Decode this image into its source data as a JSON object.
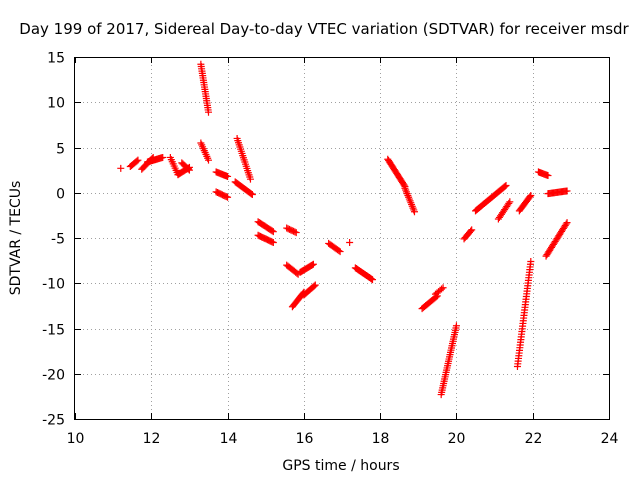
{
  "chart_data": {
    "type": "scatter",
    "title": "Day 199 of 2017, Sidereal Day-to-day VTEC variation (SDTVAR) for receiver msdr",
    "xlabel": "GPS time / hours",
    "ylabel": "SDTVAR / TECUs",
    "xlim": [
      10,
      24
    ],
    "ylim": [
      -25,
      15
    ],
    "x_ticks": [
      "10",
      "12",
      "14",
      "16",
      "18",
      "20",
      "22",
      "24"
    ],
    "y_ticks": [
      "15",
      "10",
      "5",
      "0",
      "-5",
      "-10",
      "-15",
      "-20",
      "-25"
    ],
    "grid": true,
    "legend": "none",
    "marker": "+",
    "marker_color": "#ff0000",
    "tracks": [
      {
        "x": [
          11.2,
          11.2
        ],
        "y": [
          2.7,
          2.7
        ],
        "n": 1
      },
      {
        "x": [
          11.45,
          11.65
        ],
        "y": [
          2.9,
          3.6
        ],
        "n": 8
      },
      {
        "x": [
          11.75,
          12.05
        ],
        "y": [
          2.6,
          3.9
        ],
        "n": 12
      },
      {
        "x": [
          11.9,
          12.3
        ],
        "y": [
          3.4,
          3.9
        ],
        "n": 16
      },
      {
        "x": [
          12.5,
          12.7
        ],
        "y": [
          3.9,
          2.0
        ],
        "n": 9
      },
      {
        "x": [
          12.7,
          13.0
        ],
        "y": [
          2.0,
          2.8
        ],
        "n": 12
      },
      {
        "x": [
          12.8,
          13.0
        ],
        "y": [
          3.3,
          2.5
        ],
        "n": 8
      },
      {
        "x": [
          13.3,
          13.5
        ],
        "y": [
          14.2,
          8.9
        ],
        "n": 22
      },
      {
        "x": [
          13.3,
          13.5
        ],
        "y": [
          5.5,
          3.6
        ],
        "n": 10
      },
      {
        "x": [
          13.7,
          14.0
        ],
        "y": [
          2.3,
          1.8
        ],
        "n": 12
      },
      {
        "x": [
          13.7,
          14.0
        ],
        "y": [
          0.1,
          -0.5
        ],
        "n": 10
      },
      {
        "x": [
          14.25,
          14.6
        ],
        "y": [
          6.0,
          1.5
        ],
        "n": 20
      },
      {
        "x": [
          14.2,
          14.65
        ],
        "y": [
          1.2,
          -0.2
        ],
        "n": 18
      },
      {
        "x": [
          14.8,
          15.2
        ],
        "y": [
          -3.2,
          -4.3
        ],
        "n": 14
      },
      {
        "x": [
          14.8,
          15.2
        ],
        "y": [
          -4.7,
          -5.5
        ],
        "n": 14
      },
      {
        "x": [
          15.55,
          15.8
        ],
        "y": [
          -3.9,
          -4.4
        ],
        "n": 8
      },
      {
        "x": [
          15.55,
          15.85
        ],
        "y": [
          -8.0,
          -9.0
        ],
        "n": 10
      },
      {
        "x": [
          15.7,
          16.0
        ],
        "y": [
          -12.6,
          -11.0
        ],
        "n": 14
      },
      {
        "x": [
          15.9,
          16.25
        ],
        "y": [
          -8.8,
          -7.9
        ],
        "n": 14
      },
      {
        "x": [
          16.0,
          16.3
        ],
        "y": [
          -11.3,
          -10.2
        ],
        "n": 12
      },
      {
        "x": [
          16.65,
          16.95
        ],
        "y": [
          -5.6,
          -6.5
        ],
        "n": 10
      },
      {
        "x": [
          17.2,
          17.2
        ],
        "y": [
          -5.5,
          -5.5
        ],
        "n": 1
      },
      {
        "x": [
          17.35,
          17.8
        ],
        "y": [
          -8.3,
          -9.6
        ],
        "n": 18
      },
      {
        "x": [
          18.2,
          18.65
        ],
        "y": [
          3.7,
          0.7
        ],
        "n": 22
      },
      {
        "x": [
          18.65,
          18.9
        ],
        "y": [
          0.5,
          -2.1
        ],
        "n": 14
      },
      {
        "x": [
          19.1,
          19.5
        ],
        "y": [
          -12.8,
          -11.4
        ],
        "n": 14
      },
      {
        "x": [
          19.45,
          19.65
        ],
        "y": [
          -11.2,
          -10.5
        ],
        "n": 6
      },
      {
        "x": [
          19.6,
          20.0
        ],
        "y": [
          -22.3,
          -14.7
        ],
        "n": 32
      },
      {
        "x": [
          20.2,
          20.4
        ],
        "y": [
          -5.1,
          -4.1
        ],
        "n": 8
      },
      {
        "x": [
          20.5,
          21.3
        ],
        "y": [
          -2.0,
          0.8
        ],
        "n": 32
      },
      {
        "x": [
          21.1,
          21.4
        ],
        "y": [
          -2.9,
          -1.0
        ],
        "n": 12
      },
      {
        "x": [
          21.6,
          21.95
        ],
        "y": [
          -19.2,
          -7.6
        ],
        "n": 40
      },
      {
        "x": [
          21.65,
          21.95
        ],
        "y": [
          -2.0,
          -0.3
        ],
        "n": 14
      },
      {
        "x": [
          22.15,
          22.4
        ],
        "y": [
          2.3,
          1.9
        ],
        "n": 10
      },
      {
        "x": [
          22.35,
          22.9
        ],
        "y": [
          -7.0,
          -3.3
        ],
        "n": 24
      },
      {
        "x": [
          22.4,
          22.9
        ],
        "y": [
          -0.1,
          0.2
        ],
        "n": 18
      }
    ]
  }
}
